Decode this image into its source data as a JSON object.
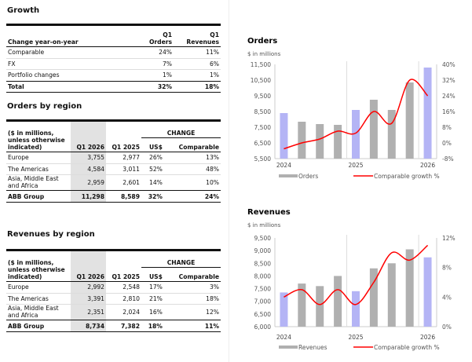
{
  "growth": {
    "title": "Growth",
    "col_label": "Change year-on-year",
    "col1": [
      "Q1",
      "Orders"
    ],
    "col2": [
      "Q1",
      "Revenues"
    ],
    "rows": [
      {
        "label": "Comparable",
        "orders": "24%",
        "revenues": "11%"
      },
      {
        "label": "FX",
        "orders": "7%",
        "revenues": "6%"
      },
      {
        "label": "Portfolio changes",
        "orders": "1%",
        "revenues": "1%"
      },
      {
        "label": "Total",
        "orders": "32%",
        "revenues": "18%"
      }
    ]
  },
  "orders_region": {
    "title": "Orders by region",
    "header": {
      "label": "($ in millions, unless otherwise indicated)",
      "q1_2026": "Q1 2026",
      "q1_2025": "Q1 2025",
      "change": "CHANGE",
      "usd": "US$",
      "comparable": "Comparable"
    },
    "rows": [
      {
        "label": "Europe",
        "q1_2026": "3,755",
        "q1_2025": "2,977",
        "usd": "26%",
        "comp": "13%"
      },
      {
        "label": "The Americas",
        "q1_2026": "4,584",
        "q1_2025": "3,011",
        "usd": "52%",
        "comp": "48%"
      },
      {
        "label": "Asia, Middle East and Africa",
        "q1_2026": "2,959",
        "q1_2025": "2,601",
        "usd": "14%",
        "comp": "10%"
      },
      {
        "label": "ABB Group",
        "q1_2026": "11,298",
        "q1_2025": "8,589",
        "usd": "32%",
        "comp": "24%"
      }
    ]
  },
  "revenues_region": {
    "title": "Revenues by region",
    "header": {
      "label": "($ in millions, unless otherwise indicated)",
      "q1_2026": "Q1 2026",
      "q1_2025": "Q1 2025",
      "change": "CHANGE",
      "usd": "US$",
      "comparable": "Comparable"
    },
    "rows": [
      {
        "label": "Europe",
        "q1_2026": "2,992",
        "q1_2025": "2,548",
        "usd": "17%",
        "comp": "3%"
      },
      {
        "label": "The Americas",
        "q1_2026": "3,391",
        "q1_2025": "2,810",
        "usd": "21%",
        "comp": "18%"
      },
      {
        "label": "Asia, Middle East and Africa",
        "q1_2026": "2,351",
        "q1_2025": "2,024",
        "usd": "16%",
        "comp": "12%"
      },
      {
        "label": "ABB Group",
        "q1_2026": "8,734",
        "q1_2025": "7,382",
        "usd": "18%",
        "comp": "11%"
      }
    ]
  },
  "colors": {
    "bar_q1": "#b4b4f5",
    "bar_other": "#b0b0b0",
    "line": "#ff0000"
  },
  "chart_data": [
    {
      "type": "bar",
      "title": "Orders",
      "subtitle": "$ in millions",
      "x_labels": [
        "2024",
        "2025",
        "2026"
      ],
      "ylim": [
        5500,
        11500
      ],
      "y_ticks": [
        "5,500",
        "6,500",
        "7,500",
        "8,500",
        "9,500",
        "10,500",
        "11,500"
      ],
      "y2lim": [
        -8,
        40
      ],
      "y2_ticks": [
        "-8%",
        "0%",
        "8%",
        "16%",
        "24%",
        "32%",
        "40%"
      ],
      "series": [
        {
          "name": "Orders",
          "values": [
            8400,
            7850,
            7700,
            7650,
            8600,
            9250,
            8600,
            10350,
            11298
          ]
        },
        {
          "name": "Comparable growth %",
          "type": "line",
          "values": [
            -3,
            0,
            2,
            6,
            5,
            16,
            10,
            32,
            24
          ]
        }
      ]
    },
    {
      "type": "bar",
      "title": "Revenues",
      "subtitle": "$ in millions",
      "x_labels": [
        "2024",
        "2025",
        "2026"
      ],
      "ylim": [
        6000,
        9500
      ],
      "y_ticks": [
        "6,000",
        "6,500",
        "7,000",
        "7,500",
        "8,000",
        "8,500",
        "9,000",
        "9,500"
      ],
      "y2lim": [
        0,
        12
      ],
      "y2_ticks": [
        "0%",
        "4%",
        "8%",
        "12%"
      ],
      "series": [
        {
          "name": "Revenues",
          "values": [
            7350,
            7700,
            7600,
            8000,
            7400,
            8300,
            8500,
            9050,
            8734
          ]
        },
        {
          "name": "Comparable growth %",
          "type": "line",
          "values": [
            4,
            5,
            3,
            5,
            3,
            6,
            10,
            9,
            11
          ]
        }
      ]
    }
  ]
}
